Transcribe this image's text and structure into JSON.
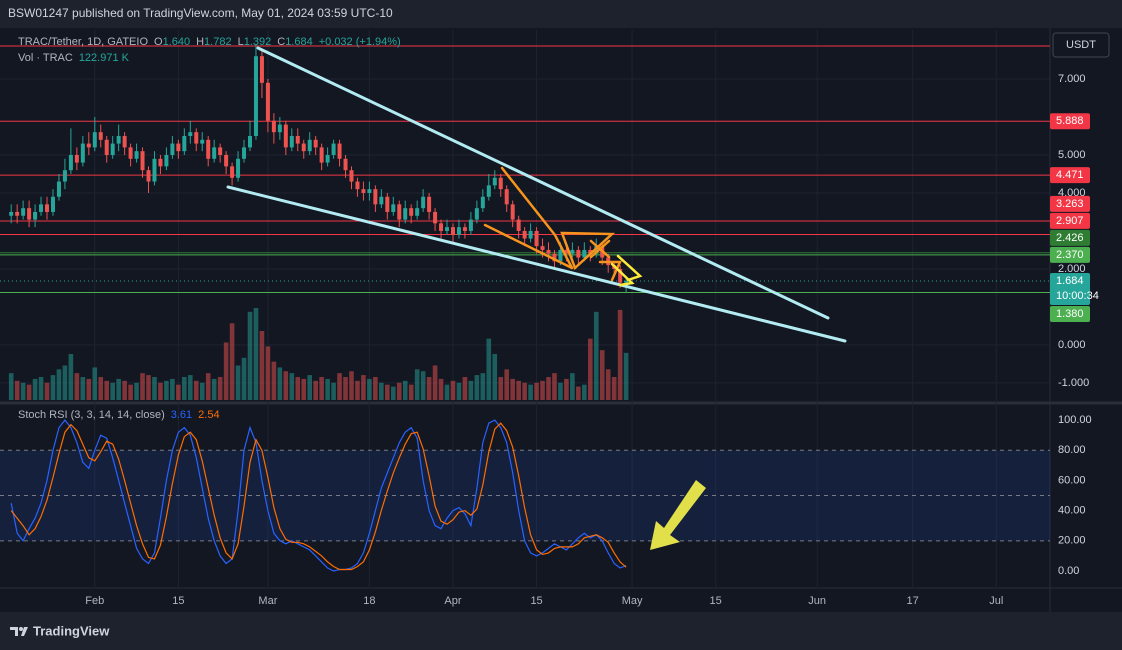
{
  "header": {
    "publisher": "BSW01247 published on TradingView.com, May 01, 2024 03:59 UTC-10"
  },
  "footer": {
    "brand": "TradingView"
  },
  "chart_data": {
    "type": "candlestick",
    "symbol": "TRAC/Tether, 1D, GATEIO",
    "ohlc_legend": [
      {
        "key": "O",
        "label": "1.640"
      },
      {
        "key": "H",
        "label": "1.782"
      },
      {
        "key": "L",
        "label": "1.392"
      },
      {
        "key": "C",
        "label": "1.684"
      }
    ],
    "change": "+0.032 (+1.94%)",
    "currency": "USDT",
    "countdown": "10:00:34",
    "up_color": "#26a69a",
    "down_color": "#ef5350",
    "xlim": [
      -0.2,
      174
    ],
    "xticks": [
      {
        "value": 14,
        "label": "Feb"
      },
      {
        "value": 28,
        "label": "15"
      },
      {
        "value": 43,
        "label": "Mar"
      },
      {
        "value": 60,
        "label": "18"
      },
      {
        "value": 74,
        "label": "Apr"
      },
      {
        "value": 88,
        "label": "15"
      },
      {
        "value": 104,
        "label": "May"
      },
      {
        "value": 118,
        "label": "15"
      },
      {
        "value": 135,
        "label": "Jun"
      },
      {
        "value": 151,
        "label": "17"
      },
      {
        "value": 165,
        "label": "Jul"
      }
    ],
    "ylim": [
      -1.45,
      8.29
    ],
    "yticks": [
      {
        "value": 7,
        "label": "7.000"
      },
      {
        "value": 5,
        "label": "5.000"
      },
      {
        "value": 4,
        "label": "4.000"
      },
      {
        "value": 2,
        "label": "2.000"
      },
      {
        "value": 0,
        "label": "0.000"
      },
      {
        "value": -1,
        "label": "-1.000"
      }
    ],
    "grid": true,
    "levels": [
      {
        "value": 7.87,
        "color": "#f23645"
      },
      {
        "value": 5.888,
        "label": "5.888",
        "color": "#f23645"
      },
      {
        "value": 4.471,
        "label": "4.471",
        "color": "#f23645"
      },
      {
        "value": 3.263,
        "label": "3.263",
        "color": "#f23645"
      },
      {
        "value": 2.907,
        "label": "2.907",
        "color": "#f23645"
      },
      {
        "value": 2.426,
        "label": "2.426",
        "color": "#2e7d32"
      },
      {
        "value": 2.37,
        "label": "2.370",
        "color": "#4caf50"
      },
      {
        "value": 1.38,
        "label": "1.380",
        "color": "#4caf50"
      }
    ],
    "candles": [
      [
        3.4,
        3.7,
        3.2,
        3.5
      ],
      [
        3.5,
        3.7,
        3.2,
        3.4
      ],
      [
        3.4,
        3.8,
        3.3,
        3.6
      ],
      [
        3.6,
        3.8,
        3.1,
        3.3
      ],
      [
        3.3,
        3.7,
        3.1,
        3.5
      ],
      [
        3.5,
        3.9,
        3.4,
        3.7
      ],
      [
        3.7,
        3.9,
        3.3,
        3.5
      ],
      [
        3.5,
        4.1,
        3.4,
        3.9
      ],
      [
        3.9,
        4.5,
        3.8,
        4.3
      ],
      [
        4.3,
        4.9,
        4.1,
        4.6
      ],
      [
        4.6,
        5.7,
        4.5,
        5.0
      ],
      [
        5.0,
        5.2,
        4.6,
        4.8
      ],
      [
        4.8,
        5.5,
        4.7,
        5.3
      ],
      [
        5.3,
        5.6,
        5.0,
        5.2
      ],
      [
        5.2,
        6.0,
        5.1,
        5.6
      ],
      [
        5.6,
        5.8,
        5.2,
        5.4
      ],
      [
        5.4,
        5.5,
        4.8,
        5.0
      ],
      [
        5.0,
        5.5,
        4.9,
        5.3
      ],
      [
        5.3,
        5.8,
        5.1,
        5.5
      ],
      [
        5.5,
        5.6,
        5.0,
        5.2
      ],
      [
        5.2,
        5.3,
        4.7,
        4.9
      ],
      [
        4.9,
        5.3,
        4.8,
        5.1
      ],
      [
        5.1,
        5.2,
        4.4,
        4.6
      ],
      [
        4.6,
        4.7,
        4.0,
        4.3
      ],
      [
        4.3,
        5.1,
        4.2,
        4.9
      ],
      [
        4.9,
        5.0,
        4.5,
        4.7
      ],
      [
        4.7,
        5.2,
        4.6,
        5.0
      ],
      [
        5.0,
        5.5,
        4.9,
        5.3
      ],
      [
        5.3,
        5.4,
        4.9,
        5.1
      ],
      [
        5.1,
        5.7,
        5.0,
        5.5
      ],
      [
        5.5,
        5.9,
        5.3,
        5.6
      ],
      [
        5.6,
        5.7,
        5.1,
        5.3
      ],
      [
        5.3,
        5.6,
        5.1,
        5.4
      ],
      [
        5.4,
        5.5,
        4.7,
        4.9
      ],
      [
        4.9,
        5.4,
        4.8,
        5.2
      ],
      [
        5.2,
        5.3,
        4.8,
        5.0
      ],
      [
        5.0,
        5.1,
        4.5,
        4.7
      ],
      [
        4.7,
        4.8,
        4.2,
        4.4
      ],
      [
        4.4,
        5.1,
        4.3,
        4.9
      ],
      [
        4.9,
        5.4,
        4.8,
        5.2
      ],
      [
        5.2,
        5.9,
        5.1,
        5.5
      ],
      [
        5.5,
        7.9,
        5.4,
        7.6
      ],
      [
        7.6,
        7.8,
        6.5,
        6.9
      ],
      [
        6.9,
        7.0,
        5.6,
        5.9
      ],
      [
        5.9,
        6.1,
        5.3,
        5.6
      ],
      [
        5.6,
        6.0,
        5.4,
        5.8
      ],
      [
        5.8,
        5.9,
        5.0,
        5.2
      ],
      [
        5.2,
        5.7,
        5.1,
        5.5
      ],
      [
        5.5,
        5.7,
        5.1,
        5.3
      ],
      [
        5.3,
        5.4,
        4.9,
        5.1
      ],
      [
        5.1,
        5.6,
        5.0,
        5.4
      ],
      [
        5.4,
        5.5,
        5.0,
        5.2
      ],
      [
        5.2,
        5.3,
        4.6,
        4.8
      ],
      [
        4.8,
        5.2,
        4.7,
        5.0
      ],
      [
        5.0,
        5.4,
        4.9,
        5.3
      ],
      [
        5.3,
        5.4,
        4.7,
        4.9
      ],
      [
        4.9,
        5.0,
        4.4,
        4.6
      ],
      [
        4.6,
        4.7,
        4.1,
        4.3
      ],
      [
        4.3,
        4.4,
        3.9,
        4.1
      ],
      [
        4.1,
        4.3,
        3.8,
        4.0
      ],
      [
        4.0,
        4.3,
        3.8,
        4.1
      ],
      [
        4.1,
        4.2,
        3.5,
        3.7
      ],
      [
        3.7,
        4.1,
        3.6,
        3.9
      ],
      [
        3.9,
        4.0,
        3.3,
        3.5
      ],
      [
        3.5,
        3.9,
        3.4,
        3.7
      ],
      [
        3.7,
        3.8,
        3.1,
        3.3
      ],
      [
        3.3,
        3.8,
        3.2,
        3.6
      ],
      [
        3.6,
        3.7,
        3.2,
        3.4
      ],
      [
        3.4,
        3.8,
        3.3,
        3.6
      ],
      [
        3.6,
        4.1,
        3.5,
        3.9
      ],
      [
        3.9,
        4.0,
        3.3,
        3.5
      ],
      [
        3.5,
        3.6,
        3.0,
        3.2
      ],
      [
        3.2,
        3.3,
        2.8,
        3.0
      ],
      [
        3.0,
        3.3,
        2.9,
        3.1
      ],
      [
        3.1,
        3.2,
        2.7,
        2.9
      ],
      [
        2.9,
        3.3,
        2.8,
        3.1
      ],
      [
        3.1,
        3.2,
        2.8,
        3.0
      ],
      [
        3.0,
        3.5,
        2.9,
        3.3
      ],
      [
        3.3,
        3.8,
        3.2,
        3.6
      ],
      [
        3.6,
        4.1,
        3.5,
        3.9
      ],
      [
        3.9,
        4.5,
        3.8,
        4.2
      ],
      [
        4.2,
        4.6,
        4.1,
        4.4
      ],
      [
        4.4,
        4.5,
        3.9,
        4.1
      ],
      [
        4.1,
        4.2,
        3.5,
        3.7
      ],
      [
        3.7,
        3.8,
        3.1,
        3.3
      ],
      [
        3.3,
        3.4,
        2.8,
        3.0
      ],
      [
        3.0,
        3.1,
        2.6,
        2.8
      ],
      [
        2.8,
        3.2,
        2.7,
        3.0
      ],
      [
        3.0,
        3.1,
        2.4,
        2.6
      ],
      [
        2.6,
        2.8,
        2.3,
        2.5
      ],
      [
        2.5,
        2.7,
        2.2,
        2.4
      ],
      [
        2.4,
        2.5,
        2.0,
        2.2
      ],
      [
        2.2,
        2.7,
        2.1,
        2.5
      ],
      [
        2.5,
        2.6,
        2.2,
        2.4
      ],
      [
        2.4,
        2.7,
        2.3,
        2.5
      ],
      [
        2.5,
        2.6,
        2.1,
        2.3
      ],
      [
        2.3,
        2.7,
        2.2,
        2.5
      ],
      [
        2.5,
        2.6,
        2.2,
        2.4
      ],
      [
        2.4,
        2.8,
        2.3,
        2.6
      ],
      [
        2.6,
        2.7,
        2.1,
        2.3
      ],
      [
        2.3,
        2.4,
        1.9,
        2.1
      ],
      [
        2.1,
        2.2,
        1.8,
        2.0
      ],
      [
        2.0,
        2.1,
        1.5,
        1.64
      ],
      [
        1.64,
        1.782,
        1.392,
        1.684
      ]
    ],
    "volume": {
      "name": "Vol · TRAC",
      "last_label": "122.971 K",
      "values": [
        70,
        50,
        45,
        40,
        55,
        60,
        45,
        65,
        80,
        90,
        120,
        70,
        60,
        55,
        85,
        60,
        50,
        45,
        55,
        50,
        40,
        45,
        70,
        65,
        60,
        45,
        50,
        55,
        40,
        60,
        65,
        50,
        45,
        70,
        55,
        60,
        150,
        200,
        90,
        110,
        230,
        240,
        180,
        140,
        100,
        85,
        75,
        70,
        60,
        55,
        65,
        50,
        60,
        55,
        45,
        70,
        60,
        75,
        50,
        65,
        55,
        60,
        45,
        40,
        35,
        45,
        50,
        40,
        80,
        75,
        60,
        90,
        55,
        40,
        50,
        45,
        60,
        50,
        65,
        70,
        160,
        120,
        60,
        80,
        55,
        50,
        45,
        40,
        45,
        50,
        60,
        70,
        45,
        55,
        70,
        35,
        40,
        160,
        230,
        130,
        80,
        60,
        235,
        122.971
      ]
    },
    "stoch": {
      "name": "Stoch RSI (3, 3, 14, 14, close)",
      "ylim": [
        -10.6,
        110
      ],
      "yticks": [
        {
          "value": 100,
          "label": "100.00"
        },
        {
          "value": 80,
          "label": "80.00"
        },
        {
          "value": 60,
          "label": "60.00"
        },
        {
          "value": 40,
          "label": "40.00"
        },
        {
          "value": 20,
          "label": "20.00"
        },
        {
          "value": 0,
          "label": "0.00"
        }
      ],
      "bands": [
        80,
        50,
        20
      ],
      "band_fill": "rgba(41,98,255,0.12)",
      "series": [
        {
          "color": "#2962ff",
          "values": [
            45,
            25,
            20,
            28,
            35,
            45,
            60,
            80,
            95,
            100,
            95,
            85,
            72,
            68,
            80,
            90,
            88,
            75,
            60,
            45,
            30,
            15,
            8,
            5,
            12,
            35,
            60,
            80,
            92,
            95,
            90,
            75,
            55,
            35,
            20,
            10,
            5,
            8,
            40,
            80,
            95,
            85,
            60,
            40,
            25,
            20,
            18,
            20,
            18,
            16,
            14,
            10,
            6,
            2,
            0,
            1,
            1,
            2,
            5,
            12,
            25,
            40,
            55,
            65,
            75,
            85,
            92,
            95,
            88,
            60,
            40,
            30,
            28,
            35,
            40,
            42,
            38,
            30,
            55,
            85,
            98,
            100,
            95,
            85,
            65,
            40,
            20,
            12,
            10,
            12,
            15,
            18,
            16,
            14,
            18,
            22,
            25,
            22,
            24,
            20,
            12,
            5,
            2,
            3.61
          ]
        },
        {
          "color": "#ff6d00",
          "values": [
            40,
            35,
            30,
            24,
            28,
            36,
            47,
            62,
            78,
            92,
            97,
            93,
            84,
            75,
            73,
            79,
            86,
            84,
            74,
            60,
            45,
            30,
            18,
            9,
            8,
            17,
            36,
            58,
            77,
            89,
            92,
            87,
            73,
            55,
            37,
            22,
            12,
            8,
            18,
            43,
            72,
            87,
            80,
            62,
            42,
            28,
            21,
            19,
            19,
            18,
            16,
            13,
            10,
            6,
            3,
            1,
            1,
            1,
            3,
            6,
            14,
            26,
            40,
            53,
            65,
            75,
            84,
            91,
            92,
            81,
            63,
            43,
            33,
            31,
            34,
            39,
            40,
            37,
            41,
            57,
            79,
            94,
            98,
            93,
            82,
            63,
            42,
            24,
            14,
            11,
            12,
            15,
            16,
            16,
            16,
            18,
            22,
            23,
            24,
            22,
            19,
            12,
            6,
            2.54
          ]
        }
      ]
    }
  }
}
